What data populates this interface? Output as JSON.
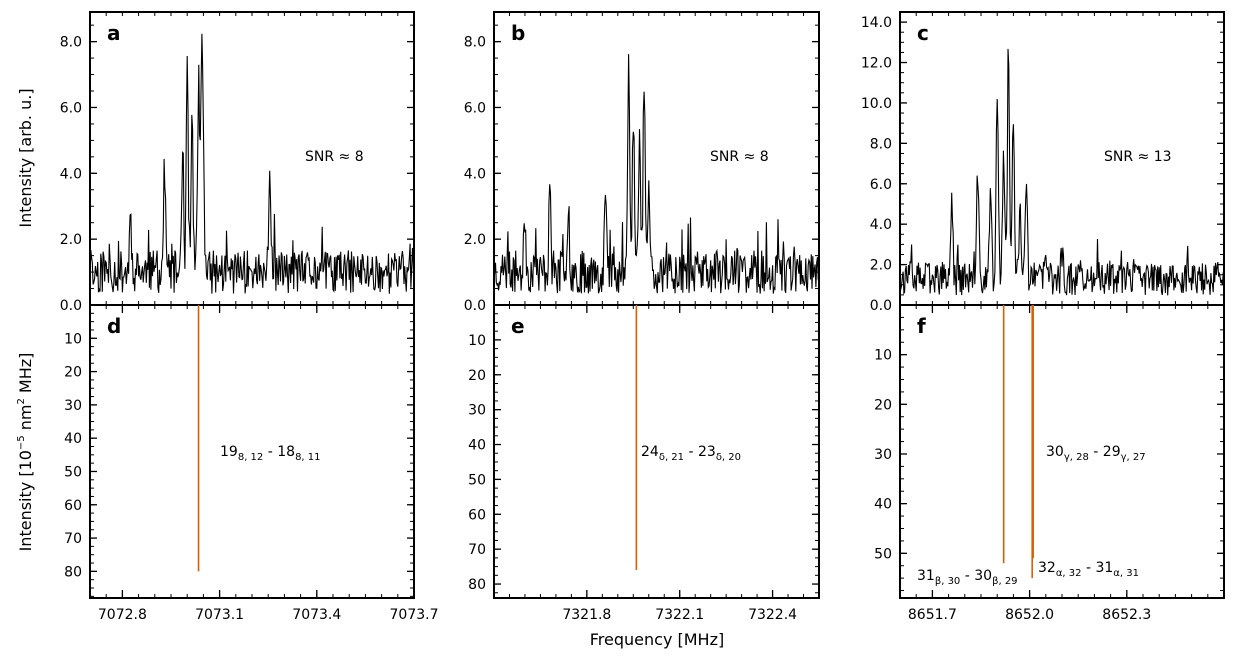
{
  "figure": {
    "shared_xlabel": "Frequency [MHz]",
    "top_ylabel": "Intensity [arb. u.]",
    "bottom_ylabel": {
      "base": "Intensity [10",
      "exp": "−5",
      "mid": " nm",
      "exp2": "2",
      "tail": " MHz]"
    }
  },
  "colors": {
    "spectrum": "#000000",
    "stick": "#d95f02",
    "axis": "#000000"
  },
  "chart_data": [
    {
      "panel": "a",
      "type": "line",
      "annotation": "SNR ≈ 8",
      "xlim": [
        7072.7,
        7073.7
      ],
      "ylim": [
        0,
        8.9
      ],
      "yticks": [
        0.0,
        2.0,
        4.0,
        6.0,
        8.0
      ],
      "ytick_labels": [
        "0.0",
        "2.0",
        "4.0",
        "6.0",
        "8.0"
      ],
      "shared_x_with": "d",
      "baseline": 1.0,
      "noise": 0.55,
      "seed": 11,
      "spikes": [
        [
          7072.825,
          2.7
        ],
        [
          7072.93,
          4.1
        ],
        [
          7072.985,
          4.3
        ],
        [
          7073.0,
          7.5
        ],
        [
          7073.015,
          5.5
        ],
        [
          7073.035,
          6.7
        ],
        [
          7073.045,
          7.9
        ],
        [
          7073.255,
          3.5
        ],
        [
          7073.05,
          3.0
        ]
      ],
      "description": "noisy spectrum with doublet peak near 7073.0 MHz"
    },
    {
      "panel": "b",
      "type": "line",
      "annotation": "SNR ≈ 8",
      "xlim": [
        7321.5,
        7322.55
      ],
      "ylim": [
        0,
        8.9
      ],
      "yticks": [
        0.0,
        2.0,
        4.0,
        6.0,
        8.0
      ],
      "ytick_labels": [
        "0.0",
        "2.0",
        "4.0",
        "6.0",
        "8.0"
      ],
      "shared_x_with": "e",
      "baseline": 1.0,
      "noise": 0.55,
      "seed": 23,
      "spikes": [
        [
          7321.6,
          2.7
        ],
        [
          7321.68,
          3.5
        ],
        [
          7321.74,
          3.2
        ],
        [
          7321.86,
          3.5
        ],
        [
          7321.935,
          7.5
        ],
        [
          7321.95,
          5.6
        ],
        [
          7321.97,
          5.2
        ],
        [
          7321.985,
          7.0
        ],
        [
          7322.0,
          4.0
        ]
      ],
      "description": "noisy spectrum with doublet peak near 7321.96 MHz"
    },
    {
      "panel": "c",
      "type": "line",
      "annotation": "SNR ≈ 13",
      "xlim": [
        8651.6,
        8652.6
      ],
      "ylim": [
        0,
        14.5
      ],
      "yticks": [
        0.0,
        2.0,
        4.0,
        6.0,
        8.0,
        10.0,
        12.0,
        14.0
      ],
      "ytick_labels": [
        "0.0",
        "2.0",
        "4.0",
        "6.0",
        "8.0",
        "10.0",
        "12.0",
        "14.0"
      ],
      "shared_x_with": "f",
      "baseline": 1.3,
      "noise": 0.7,
      "seed": 37,
      "spikes": [
        [
          8651.76,
          5.2
        ],
        [
          8651.84,
          6.1
        ],
        [
          8651.88,
          5.8
        ],
        [
          8651.9,
          11.0
        ],
        [
          8651.92,
          7.5
        ],
        [
          8651.935,
          12.7
        ],
        [
          8651.95,
          9.5
        ],
        [
          8651.97,
          4.5
        ],
        [
          8651.99,
          5.6
        ],
        [
          8652.05,
          2.7
        ],
        [
          8652.1,
          2.5
        ]
      ],
      "description": "noisy spectrum with strong central peak near 8651.94 MHz"
    },
    {
      "panel": "d",
      "type": "bar",
      "inverted_y": true,
      "xlim": [
        7072.7,
        7073.7
      ],
      "ylim": [
        0,
        88
      ],
      "yticks": [
        10,
        20,
        30,
        40,
        50,
        60,
        70,
        80
      ],
      "ytick_labels": [
        "10",
        "20",
        "30",
        "40",
        "50",
        "60",
        "70",
        "80"
      ],
      "xticks": [
        7072.8,
        7073.1,
        7073.4,
        7073.7
      ],
      "xtick_labels": [
        "7072.8",
        "7073.1",
        "7073.4",
        "7073.7"
      ],
      "sticks": [
        {
          "x": 7073.035,
          "y": 80
        }
      ],
      "labels": [
        {
          "main": "19",
          "sub1": "8, 12",
          "mid": " - 18",
          "sub2": "8, 11"
        }
      ]
    },
    {
      "panel": "e",
      "type": "bar",
      "inverted_y": true,
      "xlim": [
        7321.5,
        7322.55
      ],
      "ylim": [
        0,
        84
      ],
      "yticks": [
        10,
        20,
        30,
        40,
        50,
        60,
        70,
        80
      ],
      "ytick_labels": [
        "10",
        "20",
        "30",
        "40",
        "50",
        "60",
        "70",
        "80"
      ],
      "xticks": [
        7321.8,
        7322.1,
        7322.4
      ],
      "xtick_labels": [
        "7321.8",
        "7322.1",
        "7322.4"
      ],
      "sticks": [
        {
          "x": 7321.96,
          "y": 76
        }
      ],
      "labels": [
        {
          "main": "24",
          "sub1": "δ, 21",
          "mid": " - 23",
          "sub2": "δ, 20"
        }
      ]
    },
    {
      "panel": "f",
      "type": "bar",
      "inverted_y": true,
      "xlim": [
        8651.6,
        8652.6
      ],
      "ylim": [
        0,
        59
      ],
      "yticks": [
        10,
        20,
        30,
        40,
        50
      ],
      "ytick_labels": [
        "10",
        "20",
        "30",
        "40",
        "50"
      ],
      "xticks": [
        8651.7,
        8652.0,
        8652.3
      ],
      "xtick_labels": [
        "8651.7",
        "8652.0",
        "8652.3"
      ],
      "sticks": [
        {
          "x": 8651.92,
          "y": 52
        },
        {
          "x": 8652.008,
          "y": 55
        },
        {
          "x": 8652.011,
          "y": 51
        }
      ],
      "labels": [
        {
          "main": "30",
          "sub1": "γ, 28",
          "mid": " - 29",
          "sub2": "γ, 27"
        },
        {
          "main": "31",
          "sub1": "β, 30",
          "mid": " - 30",
          "sub2": "β, 29"
        },
        {
          "main": "32",
          "sub1": "α, 32",
          "mid": " - 31",
          "sub2": "α, 31"
        }
      ]
    }
  ]
}
